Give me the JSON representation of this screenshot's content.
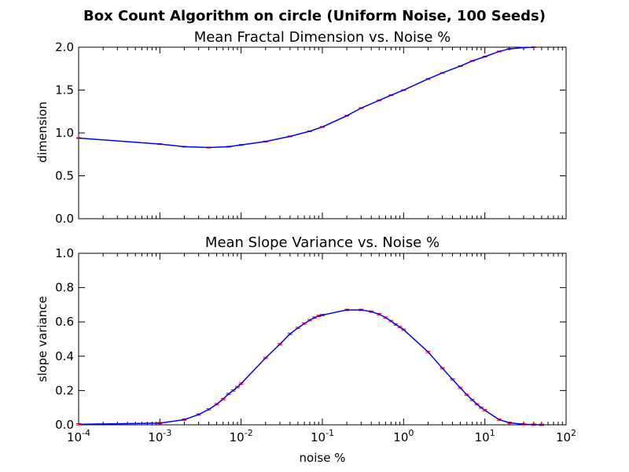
{
  "suptitle": "Box Count Algorithm on circle (Uniform Noise, 100 Seeds)",
  "colors": {
    "line": "#0000ff",
    "errorbar": "#ff0000",
    "axes": "#000000"
  },
  "x_tick_labels": [
    {
      "base": "10",
      "exp": "-4",
      "value": 0.0001
    },
    {
      "base": "10",
      "exp": "-3",
      "value": 0.001
    },
    {
      "base": "10",
      "exp": "-2",
      "value": 0.01
    },
    {
      "base": "10",
      "exp": "-1",
      "value": 0.1
    },
    {
      "base": "10",
      "exp": "0",
      "value": 1
    },
    {
      "base": "10",
      "exp": "1",
      "value": 10
    },
    {
      "base": "10",
      "exp": "2",
      "value": 100
    }
  ],
  "chart_data": [
    {
      "type": "line",
      "title": "Mean Fractal Dimension vs. Noise %",
      "xlabel": "",
      "ylabel": "dimension",
      "xscale": "log",
      "xlim": [
        0.0001,
        100
      ],
      "ylim": [
        0,
        2
      ],
      "yticks": [
        "0.0",
        "0.5",
        "1.0",
        "1.5",
        "2.0"
      ],
      "ytick_values": [
        0,
        0.5,
        1.0,
        1.5,
        2.0
      ],
      "series": [
        {
          "name": "mean dimension",
          "x": [
            0.0001,
            0.001,
            0.002,
            0.004,
            0.007,
            0.01,
            0.02,
            0.04,
            0.07,
            0.1,
            0.2,
            0.3,
            0.5,
            0.7,
            1.0,
            2.0,
            3.0,
            5.0,
            7.0,
            10.0,
            15.0,
            20.0,
            30.0,
            40.0
          ],
          "y": [
            0.94,
            0.87,
            0.84,
            0.83,
            0.84,
            0.86,
            0.9,
            0.96,
            1.02,
            1.07,
            1.2,
            1.29,
            1.38,
            1.44,
            1.5,
            1.63,
            1.7,
            1.78,
            1.84,
            1.89,
            1.95,
            1.98,
            1.995,
            2.0
          ],
          "yerr": 0.005
        }
      ]
    },
    {
      "type": "line",
      "title": "Mean Slope Variance vs. Noise %",
      "xlabel": "noise %",
      "ylabel": "slope variance",
      "xscale": "log",
      "xlim": [
        0.0001,
        100
      ],
      "ylim": [
        0,
        1
      ],
      "yticks": [
        "0.0",
        "0.2",
        "0.4",
        "0.6",
        "0.8",
        "1.0"
      ],
      "ytick_values": [
        0,
        0.2,
        0.4,
        0.6,
        0.8,
        1.0
      ],
      "series": [
        {
          "name": "mean slope variance",
          "x": [
            0.0001,
            0.001,
            0.002,
            0.003,
            0.004,
            0.005,
            0.006,
            0.007,
            0.008,
            0.009,
            0.01,
            0.02,
            0.03,
            0.04,
            0.05,
            0.06,
            0.07,
            0.08,
            0.09,
            0.1,
            0.2,
            0.3,
            0.4,
            0.5,
            0.6,
            0.7,
            0.8,
            0.9,
            1.0,
            2.0,
            3.0,
            4.0,
            5.0,
            6.0,
            7.0,
            8.0,
            9.0,
            10.0,
            15.0,
            20.0,
            30.0,
            40.0,
            50.0
          ],
          "y": [
            0.003,
            0.01,
            0.03,
            0.06,
            0.09,
            0.12,
            0.15,
            0.18,
            0.2,
            0.22,
            0.24,
            0.39,
            0.47,
            0.53,
            0.565,
            0.59,
            0.61,
            0.625,
            0.635,
            0.64,
            0.67,
            0.67,
            0.66,
            0.645,
            0.625,
            0.605,
            0.585,
            0.57,
            0.555,
            0.425,
            0.33,
            0.265,
            0.215,
            0.175,
            0.145,
            0.12,
            0.1,
            0.085,
            0.03,
            0.012,
            0.003,
            0.001,
            0.0
          ],
          "yerr": 0.004
        }
      ]
    }
  ]
}
